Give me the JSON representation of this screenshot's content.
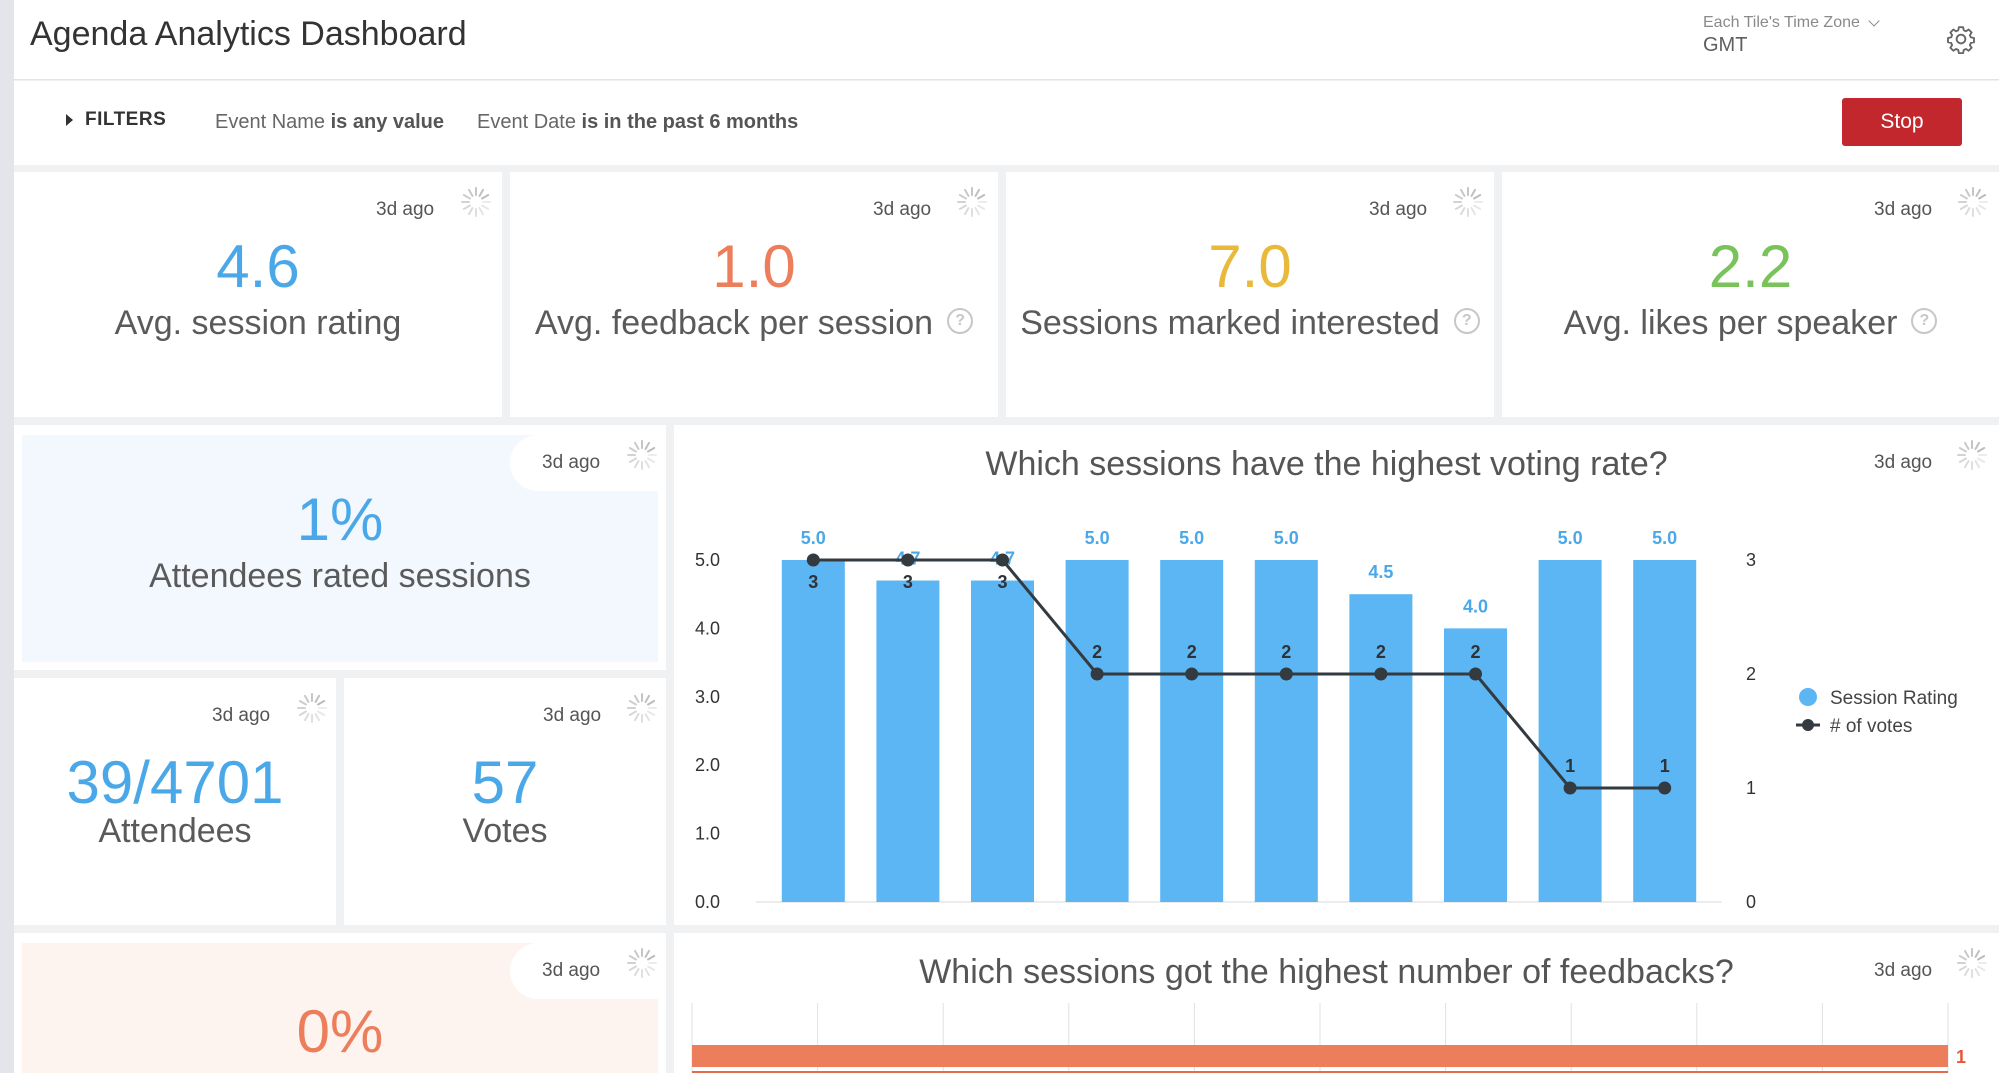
{
  "header": {
    "title": "Agenda Analytics Dashboard",
    "tz_label": "Each Tile's Time Zone",
    "tz_value": "GMT",
    "gear_icon": "gear-icon"
  },
  "filters": {
    "label": "FILTERS",
    "items": [
      {
        "name": "Event Name",
        "condition": "is any value"
      },
      {
        "name": "Event Date",
        "condition": "is in the past 6 months"
      }
    ],
    "stop_label": "Stop"
  },
  "kpis": [
    {
      "ago": "3d ago",
      "value": "4.6",
      "label": "Avg. session rating",
      "color": "#4aa8e8",
      "help": false
    },
    {
      "ago": "3d ago",
      "value": "1.0",
      "label": "Avg. feedback per session",
      "color": "#ec7e5c",
      "help": true
    },
    {
      "ago": "3d ago",
      "value": "7.0",
      "label": "Sessions marked interested",
      "color": "#e8b93a",
      "help": true
    },
    {
      "ago": "3d ago",
      "value": "2.2",
      "label": "Avg. likes per speaker",
      "color": "#78c35a",
      "help": true
    }
  ],
  "rated": {
    "ago": "3d ago",
    "value": "1%",
    "label": "Attendees rated sessions",
    "color": "#4aa8e8"
  },
  "attendees": {
    "ago": "3d ago",
    "value": "39/4701",
    "label": "Attendees",
    "color": "#4aa8e8"
  },
  "votes": {
    "ago": "3d ago",
    "value": "57",
    "label": "Votes",
    "color": "#4aa8e8"
  },
  "feedback_pct": {
    "ago": "3d ago",
    "value": "0%",
    "color": "#ec7e5c"
  },
  "voting_chart": {
    "ago": "3d ago",
    "title": "Which sessions have the highest voting rate?",
    "legend": {
      "rating": "Session Rating",
      "votes": "# of votes"
    }
  },
  "feedback_chart": {
    "ago": "3d ago",
    "title": "Which sessions got the highest number of feedbacks?",
    "value_label": "1"
  },
  "chart_data": [
    {
      "type": "bar",
      "title": "Which sessions have the highest voting rate?",
      "categories": [
        "",
        "",
        "",
        "",
        "",
        "",
        "",
        "",
        "",
        ""
      ],
      "series": [
        {
          "name": "Session Rating",
          "type": "bar",
          "axis": "left",
          "color": "#5cb6f4",
          "values": [
            5.0,
            4.7,
            4.7,
            5.0,
            5.0,
            5.0,
            4.5,
            4.0,
            5.0,
            5.0
          ]
        },
        {
          "name": "# of votes",
          "type": "line",
          "axis": "right",
          "color": "#333a40",
          "values": [
            3,
            3,
            3,
            2,
            2,
            2,
            2,
            2,
            1,
            1
          ]
        }
      ],
      "bar_labels": [
        "5.0",
        "4.7",
        "4.7",
        "5.0",
        "5.0",
        "5.0",
        "4.5",
        "4.0",
        "5.0",
        "5.0"
      ],
      "yticks_left": [
        "5.0",
        "4.0",
        "3.0",
        "2.0",
        "1.0",
        "0.0"
      ],
      "yticks_right": [
        "3",
        "2",
        "1",
        "0"
      ],
      "ylim_left": [
        0,
        5
      ],
      "ylim_right": [
        0,
        3
      ],
      "legend_position": "right",
      "grid": false
    },
    {
      "type": "bar",
      "orientation": "horizontal",
      "title": "Which sessions got the highest number of feedbacks?",
      "values": [
        1
      ],
      "color": "#ec7e5c",
      "grid": true
    }
  ]
}
